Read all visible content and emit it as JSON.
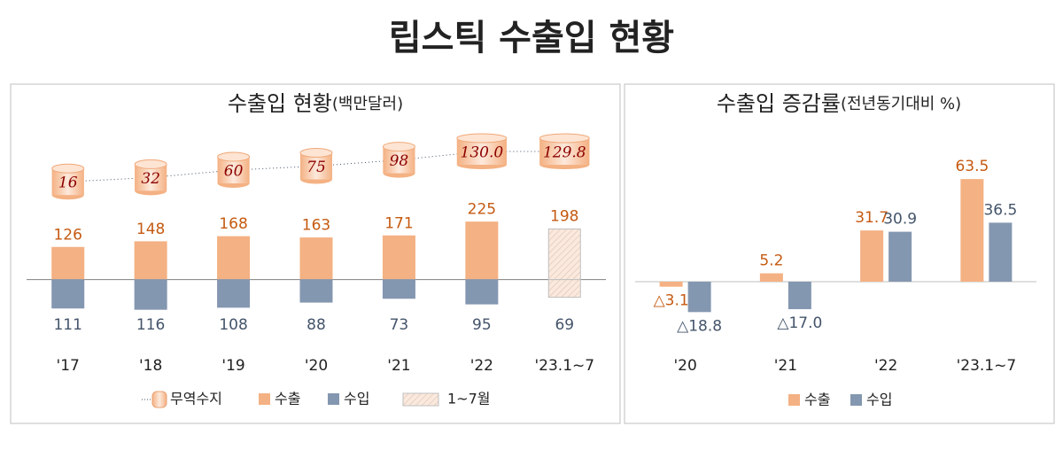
{
  "title": "립스틱 수출입 현황",
  "chart_data": [
    {
      "type": "bar",
      "title": "수출입 현황",
      "subtitle": "(백만달러)",
      "categories": [
        "'17",
        "'18",
        "'19",
        "'20",
        "'21",
        "'22",
        "'23.1~7"
      ],
      "series": [
        {
          "name": "무역수지",
          "type": "cylinder",
          "axis": "y2",
          "color": "#f8cbad",
          "values": [
            16,
            32,
            60,
            75,
            98,
            130.0,
            129.8
          ],
          "value_labels": [
            "16",
            "32",
            "60",
            "75",
            "98",
            "130.0",
            "129.8"
          ]
        },
        {
          "name": "수출",
          "color": "#f4b183",
          "label_color": "#c55a11",
          "values": [
            126,
            148,
            168,
            163,
            171,
            225,
            198
          ]
        },
        {
          "name": "수입",
          "color": "#8497b0",
          "label_color": "#44546a",
          "downward": true,
          "values": [
            111,
            116,
            108,
            88,
            73,
            95,
            69
          ]
        }
      ],
      "hatch": [
        false,
        false,
        false,
        false,
        false,
        false,
        true
      ],
      "hatch_label": "1~7월",
      "ylim": [
        -150,
        300
      ],
      "y2lim": [
        0,
        150
      ],
      "grid": false
    },
    {
      "type": "grouped-bar",
      "title": "수출입 증감률",
      "subtitle": "(전년동기대비 %)",
      "categories": [
        "'20",
        "'21",
        "'22",
        "'23.1~7"
      ],
      "series": [
        {
          "name": "수출",
          "color": "#f4b183",
          "label_color": "#c55a11",
          "values": [
            -3.1,
            5.2,
            31.7,
            63.5
          ],
          "value_labels": [
            "△3.1",
            "5.2",
            "31.7",
            "63.5"
          ]
        },
        {
          "name": "수입",
          "color": "#8497b0",
          "label_color": "#44546a",
          "values": [
            -18.8,
            -17.0,
            30.9,
            36.5
          ],
          "value_labels": [
            "△18.8",
            "△17.0",
            "30.9",
            "36.5"
          ]
        }
      ],
      "ylim": [
        -40,
        80
      ],
      "grid": false
    }
  ]
}
